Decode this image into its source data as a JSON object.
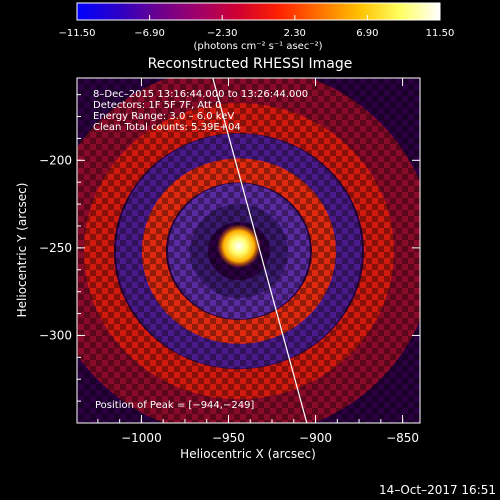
{
  "colorbar": {
    "ticks": [
      "-11.50",
      "-6.90",
      "-2.30",
      "2.30",
      "6.90",
      "11.50"
    ],
    "unit_label": "(photons cm⁻² s⁻¹ asec⁻²)",
    "range": [
      -11.5,
      11.5
    ]
  },
  "chart_data": {
    "type": "heatmap",
    "title": "Reconstructed RHESSI Image",
    "xlabel": "Heliocentric X (arcsec)",
    "ylabel": "Heliocentric Y (arcsec)",
    "xlim": [
      -1037,
      -840
    ],
    "ylim": [
      -350,
      -153
    ],
    "xticks": [
      -1000,
      -950,
      -900,
      -850
    ],
    "yticks": [
      -200,
      -250,
      -300
    ],
    "xtick_labels": [
      "−1000",
      "−950",
      "−900",
      "−850"
    ],
    "ytick_labels": [
      "−200",
      "−250",
      "−300"
    ],
    "peak": {
      "x": -944,
      "y": -249,
      "value": 11.5
    },
    "limb_line": {
      "x1": -959,
      "y1": -153,
      "x2": -905,
      "y2": -350
    },
    "annotations": {
      "time": "8–Dec–2015 13:16:44.000 to 13:26:44.000",
      "detectors": "Detectors: 1F 5F 7F, Att 0",
      "energy": "Energy Range: 3.0 – 6.0 keV",
      "clean": "Clean    Total counts: 5.39E+04",
      "peak_position": "Position of Peak = [−944,−249]"
    }
  },
  "footer": {
    "timestamp": "14–Oct–2017 16:51"
  },
  "colors": {
    "background": "#000000",
    "axes": "#ffffff",
    "colormap": [
      "#0000ff",
      "#2a00c8",
      "#6a008f",
      "#a0006a",
      "#d00030",
      "#ff2000",
      "#ff7000",
      "#ffc000",
      "#ffff60",
      "#ffffff"
    ]
  }
}
